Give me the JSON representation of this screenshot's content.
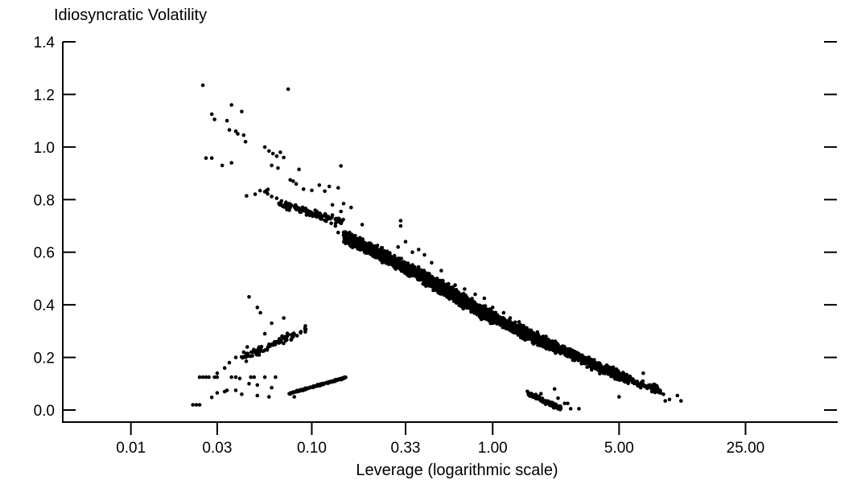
{
  "chart_data": {
    "type": "scatter",
    "title": "",
    "ylabel": "Idiosyncratic Volatility",
    "xlabel": "Leverage (logarithmic scale)",
    "x_scale": "log",
    "xlim": [
      0.0042,
      80
    ],
    "ylim": [
      -0.02,
      1.4
    ],
    "x_ticks": [
      {
        "value": 0.01,
        "label": "0.01"
      },
      {
        "value": 0.03,
        "label": "0.03"
      },
      {
        "value": 0.1,
        "label": "0.10"
      },
      {
        "value": 0.33,
        "label": "0.33"
      },
      {
        "value": 1.0,
        "label": "1.00"
      },
      {
        "value": 5.0,
        "label": "5.00"
      },
      {
        "value": 25.0,
        "label": "25.00"
      }
    ],
    "y_ticks": [
      {
        "value": 0.0,
        "label": "0.0"
      },
      {
        "value": 0.2,
        "label": "0.2"
      },
      {
        "value": 0.4,
        "label": "0.4"
      },
      {
        "value": 0.6,
        "label": "0.6"
      },
      {
        "value": 0.8,
        "label": "0.8"
      },
      {
        "value": 1.0,
        "label": "1.0"
      },
      {
        "value": 1.2,
        "label": "1.2"
      },
      {
        "value": 1.4,
        "label": "1.4"
      }
    ],
    "grid": false,
    "marker_color": "#000000",
    "points": [
      [
        0.025,
        1.235
      ],
      [
        0.074,
        1.22
      ],
      [
        0.028,
        1.125
      ],
      [
        0.029,
        1.105
      ],
      [
        0.041,
        1.135
      ],
      [
        0.036,
        1.16
      ],
      [
        0.034,
        1.1
      ],
      [
        0.035,
        1.065
      ],
      [
        0.038,
        1.06
      ],
      [
        0.039,
        1.05
      ],
      [
        0.042,
        1.045
      ],
      [
        0.043,
        1.02
      ],
      [
        0.026,
        0.958
      ],
      [
        0.028,
        0.958
      ],
      [
        0.032,
        0.93
      ],
      [
        0.036,
        0.94
      ],
      [
        0.055,
        1.0
      ],
      [
        0.058,
        0.985
      ],
      [
        0.061,
        0.975
      ],
      [
        0.064,
        0.965
      ],
      [
        0.067,
        0.98
      ],
      [
        0.07,
        0.96
      ],
      [
        0.06,
        0.93
      ],
      [
        0.065,
        0.92
      ],
      [
        0.085,
        0.915
      ],
      [
        0.145,
        0.928
      ],
      [
        0.076,
        0.875
      ],
      [
        0.079,
        0.87
      ],
      [
        0.082,
        0.86
      ],
      [
        0.11,
        0.855
      ],
      [
        0.125,
        0.85
      ],
      [
        0.14,
        0.845
      ],
      [
        0.09,
        0.84
      ],
      [
        0.1,
        0.835
      ],
      [
        0.118,
        0.832
      ],
      [
        0.055,
        0.83
      ],
      [
        0.057,
        0.822
      ],
      [
        0.06,
        0.812
      ],
      [
        0.064,
        0.805
      ],
      [
        0.068,
        0.795
      ],
      [
        0.072,
        0.79
      ],
      [
        0.076,
        0.782
      ],
      [
        0.08,
        0.775
      ],
      [
        0.085,
        0.768
      ],
      [
        0.09,
        0.76
      ],
      [
        0.095,
        0.752
      ],
      [
        0.1,
        0.745
      ],
      [
        0.106,
        0.735
      ],
      [
        0.112,
        0.727
      ],
      [
        0.12,
        0.718
      ],
      [
        0.128,
        0.71
      ],
      [
        0.135,
        0.7
      ],
      [
        0.13,
        0.78
      ],
      [
        0.15,
        0.785
      ],
      [
        0.165,
        0.77
      ],
      [
        0.145,
        0.755
      ],
      [
        0.19,
        0.705
      ],
      [
        0.14,
        0.675
      ],
      [
        0.15,
        0.665
      ],
      [
        0.16,
        0.652
      ],
      [
        0.18,
        0.64
      ],
      [
        0.2,
        0.625
      ],
      [
        0.22,
        0.61
      ],
      [
        0.24,
        0.598
      ],
      [
        0.27,
        0.59
      ],
      [
        0.3,
        0.62
      ],
      [
        0.33,
        0.64
      ],
      [
        0.36,
        0.6
      ],
      [
        0.39,
        0.61
      ],
      [
        0.31,
        0.72
      ],
      [
        0.31,
        0.7
      ],
      [
        0.42,
        0.59
      ],
      [
        0.46,
        0.56
      ],
      [
        0.52,
        0.53
      ],
      [
        0.57,
        0.48
      ],
      [
        0.62,
        0.475
      ],
      [
        0.7,
        0.46
      ],
      [
        0.8,
        0.44
      ],
      [
        0.9,
        0.425
      ],
      [
        1.0,
        0.39
      ],
      [
        1.15,
        0.37
      ],
      [
        1.25,
        0.35
      ],
      [
        1.4,
        0.335
      ],
      [
        1.6,
        0.3
      ],
      [
        1.8,
        0.28
      ],
      [
        2.0,
        0.255
      ],
      [
        2.3,
        0.235
      ],
      [
        2.6,
        0.215
      ],
      [
        3.0,
        0.19
      ],
      [
        3.5,
        0.17
      ],
      [
        4.0,
        0.155
      ],
      [
        4.6,
        0.14
      ],
      [
        5.3,
        0.125
      ],
      [
        6.2,
        0.105
      ],
      [
        7.0,
        0.09
      ],
      [
        7.6,
        0.07
      ],
      [
        8.8,
        0.06
      ],
      [
        9.5,
        0.04
      ],
      [
        9.0,
        0.035
      ],
      [
        10.5,
        0.055
      ],
      [
        11.0,
        0.035
      ],
      [
        6.8,
        0.14
      ],
      [
        5.0,
        0.05
      ],
      [
        0.045,
        0.43
      ],
      [
        0.05,
        0.39
      ],
      [
        0.052,
        0.37
      ],
      [
        0.07,
        0.35
      ],
      [
        0.06,
        0.33
      ],
      [
        0.055,
        0.29
      ],
      [
        0.044,
        0.24
      ],
      [
        0.042,
        0.22
      ],
      [
        0.038,
        0.2
      ],
      [
        0.035,
        0.18
      ],
      [
        0.033,
        0.16
      ],
      [
        0.03,
        0.14
      ],
      [
        0.04,
        0.12
      ],
      [
        0.05,
        0.095
      ],
      [
        0.06,
        0.085
      ],
      [
        0.045,
        0.1
      ],
      [
        0.025,
        0.125
      ],
      [
        0.024,
        0.125
      ],
      [
        0.026,
        0.125
      ],
      [
        0.027,
        0.125
      ],
      [
        0.029,
        0.125
      ],
      [
        0.03,
        0.125
      ],
      [
        0.036,
        0.125
      ],
      [
        0.038,
        0.125
      ],
      [
        0.046,
        0.125
      ],
      [
        0.048,
        0.125
      ],
      [
        0.055,
        0.125
      ],
      [
        0.063,
        0.125
      ],
      [
        0.03,
        0.065
      ],
      [
        0.033,
        0.07
      ],
      [
        0.034,
        0.075
      ],
      [
        0.041,
        0.06
      ],
      [
        0.05,
        0.055
      ],
      [
        0.058,
        0.05
      ],
      [
        0.08,
        0.05
      ],
      [
        0.028,
        0.048
      ],
      [
        0.038,
        0.075
      ],
      [
        0.022,
        0.02
      ],
      [
        0.023,
        0.02
      ],
      [
        0.024,
        0.02
      ],
      [
        2.3,
        0.045
      ],
      [
        2.5,
        0.025
      ],
      [
        2.6,
        0.025
      ],
      [
        3.0,
        0.005
      ],
      [
        2.7,
        0.005
      ],
      [
        2.2,
        0.08
      ],
      [
        1.85,
        0.062
      ]
    ],
    "bands": [
      {
        "x_from": 0.04,
        "x_to": 0.094,
        "y_from": 0.19,
        "y_to": 0.31,
        "spread": 0.022,
        "n": 90
      },
      {
        "x_from": 0.075,
        "x_to": 0.155,
        "y_from": 0.063,
        "y_to": 0.124,
        "spread": 0.004,
        "n": 140
      },
      {
        "x_from": 0.043,
        "x_to": 0.058,
        "y_from": 0.81,
        "y_to": 0.84,
        "spread": 0.01,
        "n": 6
      },
      {
        "x_from": 1.55,
        "x_to": 2.4,
        "y_from": 0.065,
        "y_to": 0.005,
        "spread": 0.012,
        "n": 120
      },
      {
        "x_from": 0.065,
        "x_to": 0.15,
        "y_from": 0.785,
        "y_to": 0.715,
        "spread": 0.018,
        "n": 110
      },
      {
        "x_from": 0.15,
        "x_to": 0.38,
        "y_from": 0.66,
        "y_to": 0.52,
        "spread": 0.035,
        "n": 700
      },
      {
        "x_from": 0.38,
        "x_to": 1.0,
        "y_from": 0.52,
        "y_to": 0.35,
        "spread": 0.035,
        "n": 1100
      },
      {
        "x_from": 1.0,
        "x_to": 2.2,
        "y_from": 0.35,
        "y_to": 0.24,
        "spread": 0.03,
        "n": 700
      },
      {
        "x_from": 2.2,
        "x_to": 5.0,
        "y_from": 0.24,
        "y_to": 0.13,
        "spread": 0.026,
        "n": 450
      },
      {
        "x_from": 5.0,
        "x_to": 8.5,
        "y_from": 0.13,
        "y_to": 0.07,
        "spread": 0.022,
        "n": 120
      }
    ]
  }
}
